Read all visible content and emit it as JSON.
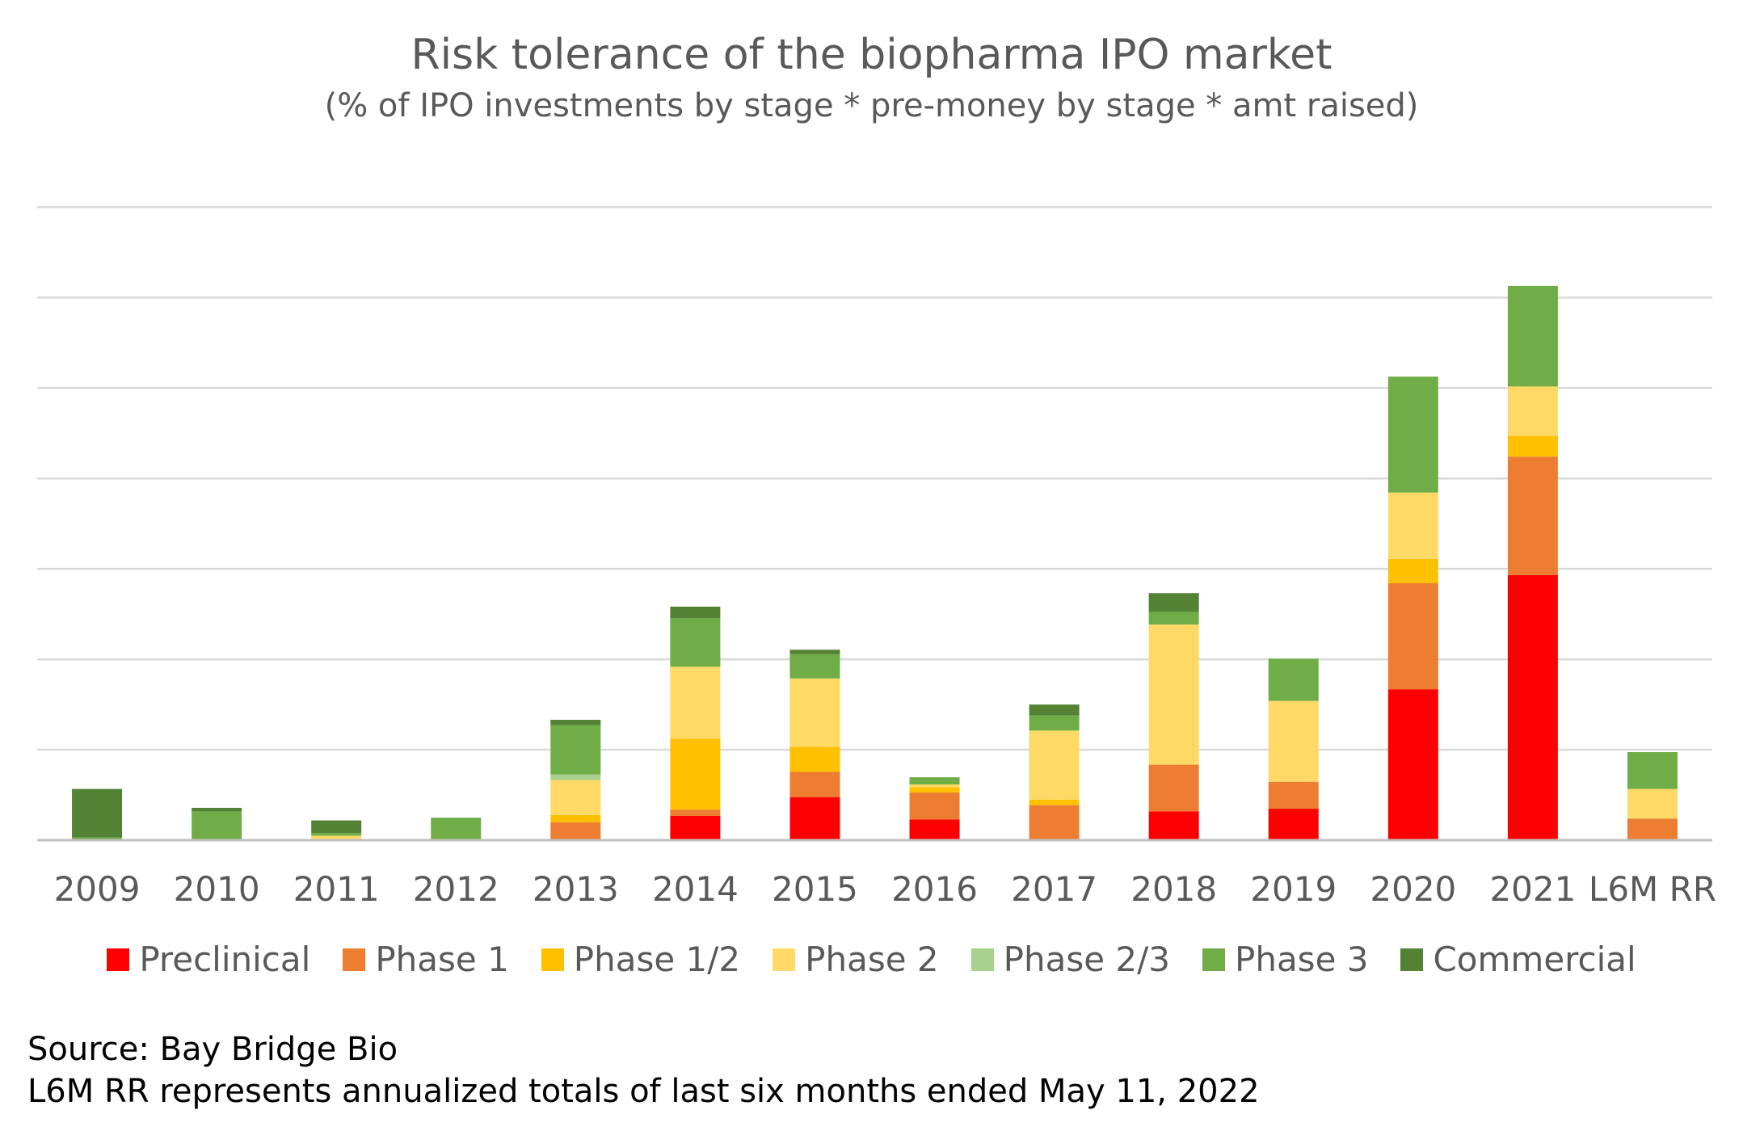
{
  "chart_data": {
    "type": "bar",
    "stacked": true,
    "title": "Risk tolerance of the biopharma IPO market",
    "subtitle": "(% of IPO investments by stage * pre-money by stage * amt raised)",
    "categories": [
      "2009",
      "2010",
      "2011",
      "2012",
      "2013",
      "2014",
      "2015",
      "2016",
      "2017",
      "2018",
      "2019",
      "2020",
      "2021",
      "L6M RR"
    ],
    "ylim": [
      0,
      7.5
    ],
    "gridline_count": 7,
    "y_tick_labels_shown": false,
    "legend_position": "bottom",
    "series": [
      {
        "name": "Preclinical",
        "color": "#ff0000",
        "values": [
          0,
          0,
          0,
          0,
          0,
          0.27,
          0.48,
          0.23,
          0,
          0.32,
          0.35,
          1.68,
          2.95,
          0
        ]
      },
      {
        "name": "Phase 1",
        "color": "#ed7d31",
        "values": [
          0,
          0,
          0,
          0,
          0.2,
          0.07,
          0.28,
          0.3,
          0.39,
          0.52,
          0.3,
          1.18,
          1.32,
          0.24
        ]
      },
      {
        "name": "Phase 1/2",
        "color": "#ffc000",
        "values": [
          0,
          0,
          0,
          0,
          0.08,
          0.79,
          0.28,
          0.06,
          0.06,
          0,
          0,
          0.27,
          0.23,
          0
        ]
      },
      {
        "name": "Phase 2",
        "color": "#ffd966",
        "values": [
          0,
          0,
          0.05,
          0,
          0.39,
          0.8,
          0.76,
          0.03,
          0.77,
          1.56,
          0.9,
          0.74,
          0.55,
          0.33
        ]
      },
      {
        "name": "Phase 2/3",
        "color": "#a9d18e",
        "values": [
          0,
          0,
          0,
          0,
          0.06,
          0,
          0,
          0,
          0,
          0,
          0,
          0,
          0,
          0
        ]
      },
      {
        "name": "Phase 3",
        "color": "#70ad47",
        "values": [
          0.03,
          0.32,
          0.03,
          0.25,
          0.55,
          0.54,
          0.27,
          0.08,
          0.17,
          0.14,
          0.47,
          1.29,
          1.12,
          0.41
        ]
      },
      {
        "name": "Commercial",
        "color": "#548235",
        "values": [
          0.54,
          0.04,
          0.14,
          0,
          0.06,
          0.13,
          0.05,
          0,
          0.12,
          0.21,
          0,
          0,
          0,
          0
        ]
      }
    ]
  },
  "footnotes": [
    "Source: Bay Bridge Bio",
    "L6M RR represents annualized totals of last six months ended May 11, 2022"
  ]
}
